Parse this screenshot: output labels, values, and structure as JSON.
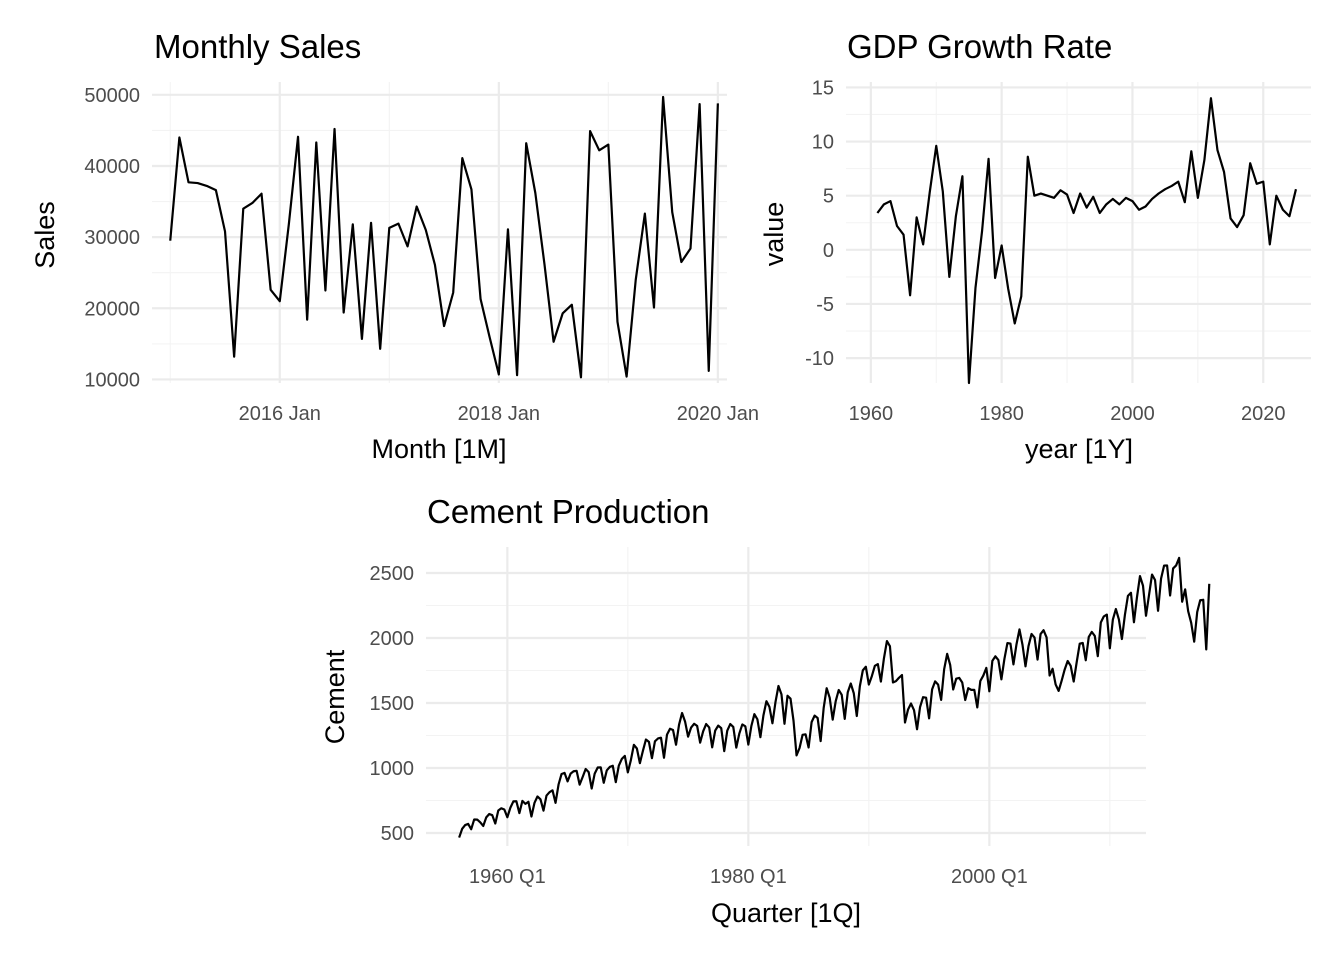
{
  "chart_data": [
    {
      "id": "sales",
      "type": "line",
      "title": "Monthly Sales",
      "xlabel": "Month [1M]",
      "ylabel": "Sales",
      "x_start": "2015-01",
      "x_frequency": "monthly",
      "x_ticks": [
        {
          "x": "2016-01",
          "label": "2016 Jan"
        },
        {
          "x": "2018-01",
          "label": "2018 Jan"
        },
        {
          "x": "2020-01",
          "label": "2020 Jan"
        }
      ],
      "y_ticks": [
        10000,
        20000,
        30000,
        40000,
        50000
      ],
      "y_tick_labels": [
        "10000",
        "20000",
        "30000",
        "40000",
        "50000"
      ],
      "xlim": [
        "2014-11",
        "2020-02"
      ],
      "ylim": [
        9500,
        51800
      ],
      "grid": true,
      "legend": "none",
      "series": [
        {
          "x_start": "2015-01",
          "values": [
            29500,
            44000,
            37700,
            37600,
            37200,
            36600,
            30800,
            13200,
            34000,
            34800,
            36100,
            22600,
            21000,
            31900,
            44100,
            18400,
            43300,
            22500,
            45200,
            19400,
            31800,
            15700,
            32000,
            14300,
            31300,
            31900,
            28700,
            34300,
            31000,
            26100,
            17500,
            22200,
            41100,
            36700,
            21300,
            15900,
            10700,
            31100,
            10600,
            43200,
            36200,
            26200,
            15300,
            19300,
            20500,
            10300,
            44900,
            42200,
            43000,
            18100,
            10400,
            24000,
            33300,
            20100,
            49700,
            33500,
            26500,
            28400,
            48700,
            11200,
            48800
          ]
        }
      ]
    },
    {
      "id": "gdp",
      "type": "line",
      "title": "GDP Growth Rate",
      "xlabel": "year [1Y]",
      "ylabel": "value",
      "x_ticks": [
        {
          "x": 1960,
          "label": "1960"
        },
        {
          "x": 1980,
          "label": "1980"
        },
        {
          "x": 2000,
          "label": "2000"
        },
        {
          "x": 2020,
          "label": "2020"
        }
      ],
      "y_ticks": [
        -10,
        -5,
        0,
        5,
        10,
        15
      ],
      "y_tick_labels": [
        "-10",
        "-5",
        "0",
        "5",
        "10",
        "15"
      ],
      "xlim": [
        1956.2,
        2027.3
      ],
      "ylim": [
        -12.3,
        15.5
      ],
      "grid": true,
      "legend": "none",
      "series": [
        {
          "x_start": 1961,
          "values": [
            3.4,
            4.2,
            4.5,
            2.2,
            1.4,
            -4.2,
            3.0,
            0.5,
            5.3,
            9.6,
            5.4,
            -2.5,
            3.1,
            6.8,
            -12.3,
            -3.5,
            1.7,
            8.4,
            -2.6,
            0.4,
            -3.6,
            -6.8,
            -4.3,
            8.6,
            5.0,
            5.2,
            5.0,
            4.8,
            5.5,
            5.1,
            3.4,
            5.2,
            3.9,
            4.9,
            3.4,
            4.2,
            4.7,
            4.2,
            4.8,
            4.5,
            3.7,
            4.0,
            4.7,
            5.2,
            5.6,
            5.9,
            6.3,
            4.4,
            9.1,
            4.8,
            8.3,
            14.0,
            9.2,
            7.2,
            2.9,
            2.1,
            3.2,
            8.0,
            6.1,
            6.3,
            0.5,
            5.0,
            3.7,
            3.1,
            5.6
          ]
        }
      ]
    },
    {
      "id": "cement",
      "type": "line",
      "title": "Cement Production",
      "xlabel": "Quarter [1Q]",
      "ylabel": "Cement",
      "x_start": "1956 Q1",
      "x_frequency": "quarterly",
      "x_ticks": [
        {
          "x": "1960 Q1",
          "label": "1960 Q1"
        },
        {
          "x": "1980 Q1",
          "label": "1980 Q1"
        },
        {
          "x": "2000 Q1",
          "label": "2000 Q1"
        }
      ],
      "y_ticks": [
        500,
        1000,
        1500,
        2000,
        2500
      ],
      "y_tick_labels": [
        "500",
        "1000",
        "1500",
        "2000",
        "2500"
      ],
      "xlim": [
        "1953 Q2",
        "2013 Q1"
      ],
      "ylim": [
        400,
        2700
      ],
      "grid": true,
      "legend": "none",
      "series": [
        {
          "x_start": "1956 Q1",
          "values": [
            465,
            532,
            561,
            570,
            529,
            604,
            603,
            582,
            554,
            620,
            646,
            637,
            573,
            673,
            690,
            681,
            621,
            694,
            743,
            744,
            653,
            747,
            724,
            740,
            627,
            731,
            781,
            759,
            672,
            788,
            814,
            828,
            732,
            873,
            954,
            962,
            897,
            957,
            975,
            978,
            872,
            931,
            992,
            968,
            842,
            957,
            1004,
            1005,
            886,
            981,
            1008,
            1017,
            891,
            1018,
            1070,
            1093,
            966,
            1060,
            1178,
            1150,
            1037,
            1132,
            1219,
            1201,
            1076,
            1205,
            1227,
            1233,
            1079,
            1257,
            1302,
            1292,
            1179,
            1333,
            1423,
            1357,
            1241,
            1311,
            1340,
            1324,
            1195,
            1282,
            1338,
            1312,
            1159,
            1288,
            1326,
            1307,
            1130,
            1287,
            1338,
            1316,
            1157,
            1265,
            1335,
            1321,
            1180,
            1323,
            1414,
            1375,
            1237,
            1404,
            1514,
            1470,
            1344,
            1506,
            1631,
            1566,
            1340,
            1556,
            1533,
            1363,
            1097,
            1154,
            1255,
            1259,
            1158,
            1353,
            1403,
            1385,
            1207,
            1461,
            1614,
            1541,
            1372,
            1514,
            1600,
            1563,
            1378,
            1583,
            1650,
            1575,
            1400,
            1627,
            1751,
            1779,
            1642,
            1707,
            1786,
            1799,
            1665,
            1842,
            1976,
            1937,
            1658,
            1668,
            1694,
            1715,
            1350,
            1449,
            1496,
            1445,
            1298,
            1469,
            1545,
            1541,
            1382,
            1605,
            1666,
            1641,
            1524,
            1760,
            1878,
            1793,
            1604,
            1687,
            1693,
            1658,
            1523,
            1614,
            1601,
            1601,
            1466,
            1669,
            1711,
            1770,
            1590,
            1824,
            1859,
            1830,
            1682,
            1839,
            1961,
            1957,
            1797,
            1950,
            2066,
            1948,
            1782,
            1938,
            2031,
            2003,
            1834,
            2030,
            2060,
            2004,
            1711,
            1763,
            1643,
            1593,
            1672,
            1757,
            1823,
            1786,
            1665,
            1815,
            1956,
            1962,
            1829,
            2008,
            2047,
            2016,
            1860,
            2119,
            2166,
            2180,
            1921,
            2142,
            2223,
            2143,
            1992,
            2178,
            2324,
            2348,
            2121,
            2313,
            2476,
            2403,
            2171,
            2330,
            2488,
            2446,
            2209,
            2457,
            2557,
            2558,
            2327,
            2535,
            2558,
            2616,
            2279,
            2374,
            2206,
            2117,
            1972,
            2200,
            2291,
            2294,
            1912,
            2417
          ]
        }
      ]
    }
  ]
}
